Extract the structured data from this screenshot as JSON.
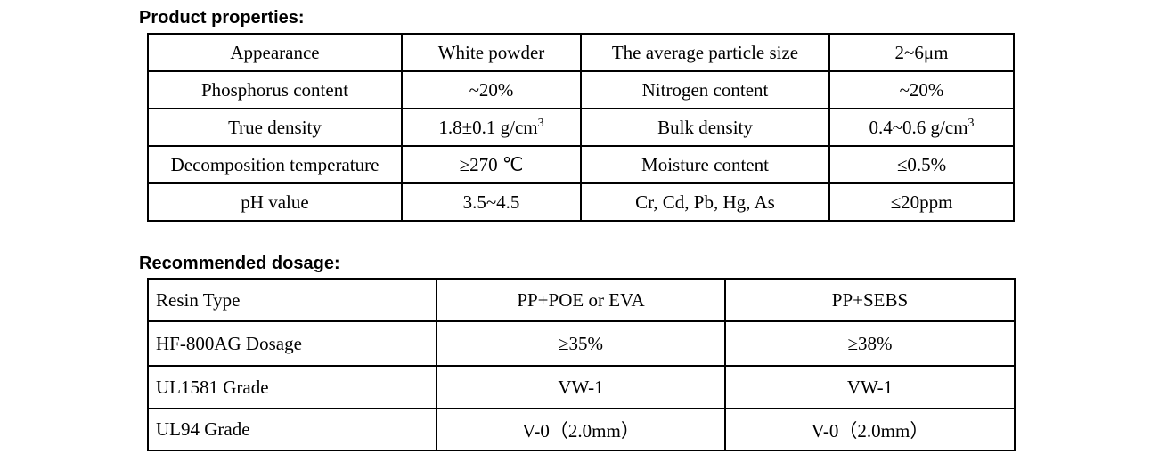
{
  "sections": {
    "properties_title": "Product properties:",
    "dosage_title": "Recommended dosage:"
  },
  "properties": {
    "rows": [
      [
        "Appearance",
        "White powder",
        "The average particle size",
        "2~6μm"
      ],
      [
        "Phosphorus content",
        "~20%",
        "Nitrogen content",
        "~20%"
      ],
      [
        "True density",
        "1.8±0.1 g/cm",
        "Bulk density",
        "0.4~0.6 g/cm"
      ],
      [
        "Decomposition temperature",
        "≥270 ℃",
        "Moisture content",
        "≤0.5%"
      ],
      [
        "pH value",
        "3.5~4.5",
        "Cr, Cd, Pb, Hg, As",
        "≤20ppm"
      ]
    ],
    "superscript": "3"
  },
  "dosage": {
    "rows": [
      [
        "Resin Type",
        "PP+POE or EVA",
        "PP+SEBS"
      ],
      [
        "HF-800AG Dosage",
        "≥35%",
        "≥38%"
      ],
      [
        "UL1581 Grade",
        "VW-1",
        "VW-1"
      ],
      [
        "UL94 Grade",
        "V-0（2.0mm）",
        "V-0（2.0mm）"
      ]
    ]
  }
}
